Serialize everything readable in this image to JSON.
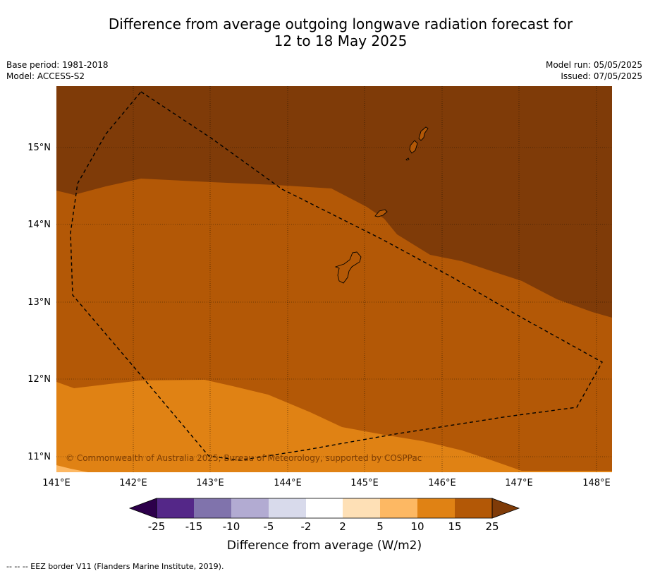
{
  "title": {
    "line1": "Difference from average outgoing longwave radiation forecast for",
    "line2": "12 to 18 May 2025"
  },
  "meta": {
    "base_period": "Base period: 1981-2018",
    "model": "Model: ACCESS-S2",
    "model_run": "Model run: 05/05/2025",
    "issued": "Issued: 07/05/2025"
  },
  "map": {
    "lon_ticks": [
      "141°E",
      "142°E",
      "143°E",
      "144°E",
      "145°E",
      "146°E",
      "147°E",
      "148°E"
    ],
    "lat_ticks": [
      "15°N",
      "14°N",
      "13°N",
      "12°N",
      "11°N"
    ],
    "credit": "© Commonwealth of Australia 2025, Bureau of Meteorology, supported by COSPPac",
    "colors": {
      "above_25": "#7f3b08",
      "15_25": "#b35806",
      "10_15": "#e08214",
      "5_10": "#fdb863"
    }
  },
  "colorbar": {
    "labels": [
      "-25",
      "-15",
      "-10",
      "-5",
      "-2",
      "2",
      "5",
      "10",
      "15",
      "25"
    ],
    "colors": [
      "#2d004b",
      "#542788",
      "#8073ac",
      "#b2abd2",
      "#d8daeb",
      "#ffffff",
      "#fee0b6",
      "#fdb863",
      "#e08214",
      "#b35806",
      "#7f3b08"
    ],
    "title": "Difference from average (W/m2)"
  },
  "footer": {
    "legend_line": "--  --  -- EEZ border V11 (Flanders Marine Institute, 2019)."
  }
}
